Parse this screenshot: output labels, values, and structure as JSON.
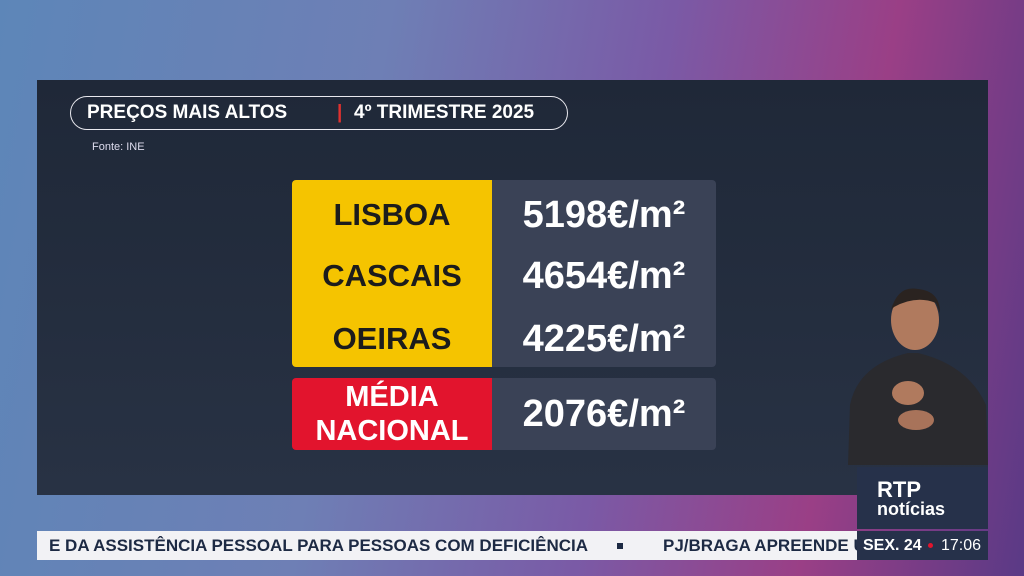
{
  "header": {
    "title": "PREÇOS MAIS ALTOS",
    "separator": "|",
    "subtitle": "4º TRIMESTRE 2025",
    "source": "Fonte: INE"
  },
  "table": {
    "rows": [
      [
        "LISBOA",
        "5198€/m²"
      ],
      [
        "CASCAIS",
        "4654€/m²"
      ],
      [
        "OEIRAS",
        "4225€/m²"
      ]
    ],
    "average": {
      "label_line1": "MÉDIA",
      "label_line2": "NACIONAL",
      "value": "2076€/m²"
    }
  },
  "logo": {
    "line1": "RTP",
    "line2": "notícias"
  },
  "ticker": {
    "items": [
      "E DA ASSISTÊNCIA PESSOAL PARA PESSOAS COM DEFICIÊNCIA",
      "PJ/BRAGA APREENDE U"
    ],
    "day": "SEX. 24",
    "time": "17:06"
  }
}
